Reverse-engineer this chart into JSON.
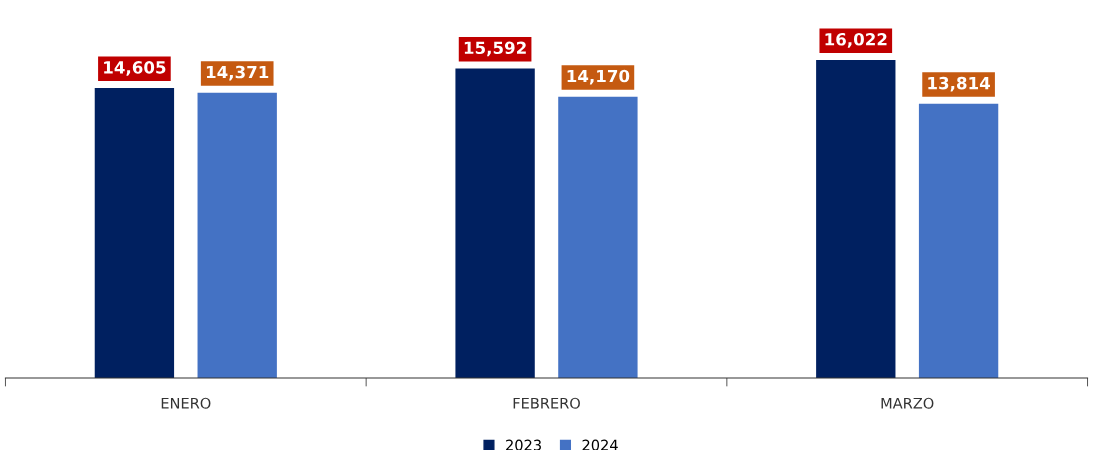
{
  "chart_data": {
    "type": "bar",
    "categories": [
      "ENERO",
      "FEBRERO",
      "MARZO"
    ],
    "series": [
      {
        "name": "2023",
        "color": "#002060",
        "values": [
          14605,
          15592,
          16022
        ],
        "value_labels": [
          "14,605",
          "15,592",
          "16,022"
        ]
      },
      {
        "name": "2024",
        "color": "#4472c4",
        "values": [
          14371,
          14170,
          13814
        ],
        "value_labels": [
          "14,371",
          "14,170",
          "13,814"
        ]
      }
    ],
    "tick_labels": "x",
    "grid": false,
    "legend": "bottom"
  }
}
